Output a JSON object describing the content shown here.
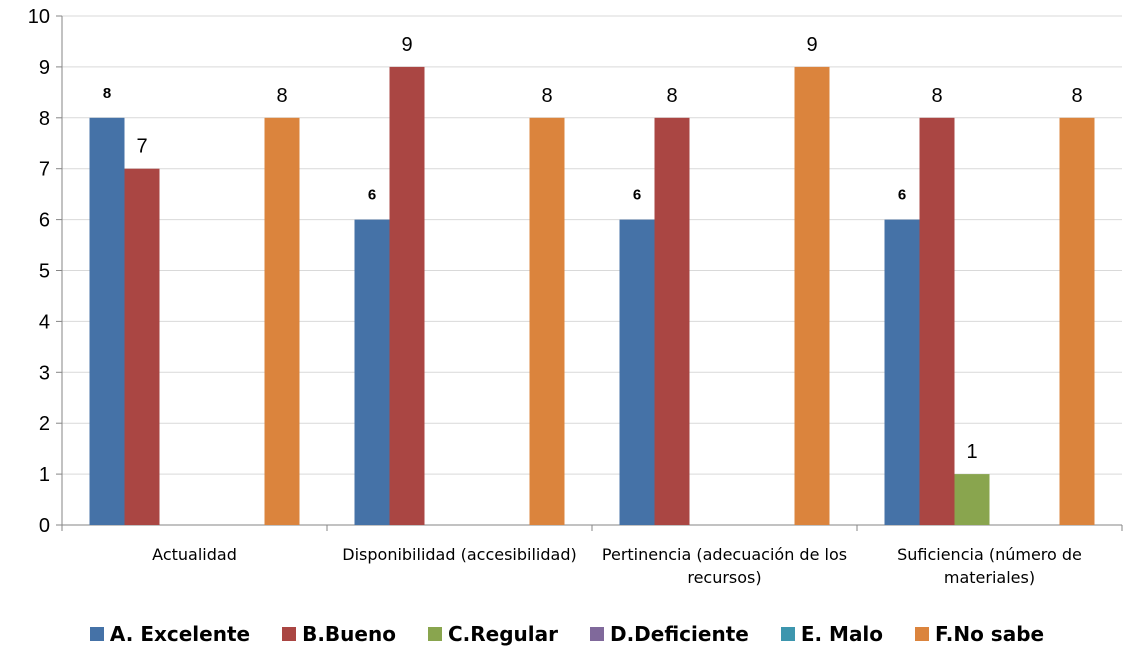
{
  "chart_data": {
    "type": "bar",
    "categories": [
      "Actualidad",
      "Disponibilidad (accesibilidad)",
      "Pertinencia (adecuación de los recursos)",
      "Suficiencia (número de materiales)"
    ],
    "category_lines": [
      [
        "Actualidad"
      ],
      [
        "Disponibilidad (accesibilidad)"
      ],
      [
        "Pertinencia (adecuación de los",
        "recursos)"
      ],
      [
        "Suficiencia (número de",
        "materiales)"
      ]
    ],
    "ylim": [
      0,
      10
    ],
    "yticks": [
      "0",
      "1",
      "2",
      "3",
      "4",
      "5",
      "6",
      "7",
      "8",
      "9",
      "10"
    ],
    "grid": true,
    "legend_position": "bottom",
    "series": [
      {
        "name": "A. Excelente",
        "color": "#4572A7",
        "values": [
          8,
          6,
          6,
          6
        ],
        "labels": [
          "8",
          "6",
          "6",
          "6"
        ],
        "label_style": "bold"
      },
      {
        "name": "B.Bueno",
        "color": "#AA4643",
        "values": [
          7,
          9,
          8,
          8
        ],
        "labels": [
          "7",
          "9",
          "8",
          "8"
        ],
        "label_style": "normal"
      },
      {
        "name": "C.Regular",
        "color": "#89A54E",
        "values": [
          0,
          0,
          0,
          1
        ],
        "labels": [
          "",
          "",
          "",
          "1"
        ],
        "label_style": "normal"
      },
      {
        "name": "D.Deficiente",
        "color": "#80699B",
        "values": [
          0,
          0,
          0,
          0
        ],
        "labels": [
          "",
          "",
          "",
          ""
        ],
        "label_style": "normal"
      },
      {
        "name": "E. Malo",
        "color": "#3D96AE",
        "values": [
          0,
          0,
          0,
          0
        ],
        "labels": [
          "",
          "",
          "",
          ""
        ],
        "label_style": "normal"
      },
      {
        "name": "F.No sabe",
        "color": "#DB843D",
        "values": [
          8,
          8,
          9,
          8
        ],
        "labels": [
          "8",
          "8",
          "9",
          "8"
        ],
        "label_style": "normal"
      }
    ]
  }
}
